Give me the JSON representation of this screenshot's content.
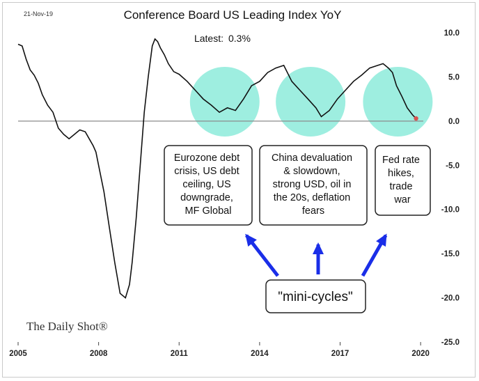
{
  "header": {
    "date": "21-Nov-19",
    "title": "Conference Board US Leading Index YoY",
    "latest_label": "Latest:",
    "latest_value": "0.3%"
  },
  "brand": "The Daily Shot®",
  "annotations": {
    "notes": [
      {
        "lines": [
          "Eurozone debt",
          "crisis, US debt",
          "ceiling, US",
          "downgrade,",
          "MF Global"
        ]
      },
      {
        "lines": [
          "China devaluation",
          "& slowdown,",
          "strong USD, oil in",
          "the 20s, deflation",
          "fears"
        ]
      },
      {
        "lines": [
          "Fed rate",
          "hikes,",
          "trade",
          "war"
        ]
      }
    ],
    "callout": "\"mini-cycles\""
  },
  "colors": {
    "line": "#111111",
    "highlight": "#7de8d6",
    "arrow": "#1a2ee8",
    "zero_line": "#8c8c8c",
    "latest_dot": "#d9534f"
  },
  "chart_data": {
    "type": "line",
    "title": "Conference Board US Leading Index YoY",
    "xlabel": "",
    "ylabel": "",
    "xlim": [
      2005.0,
      2020.1
    ],
    "ylim": [
      -25,
      10
    ],
    "x_ticks": [
      2005,
      2008,
      2011,
      2014,
      2017,
      2020
    ],
    "y_ticks": [
      10,
      5,
      0,
      -5,
      -10,
      -15,
      -20,
      -25
    ],
    "y_tick_labels": [
      "10.0",
      "5.0",
      "0.0",
      "-5.0",
      "-10.0",
      "-15.0",
      "-20.0",
      "-25.0"
    ],
    "grid": false,
    "reference_line": 0,
    "series": [
      {
        "name": "",
        "x": [
          2005.0,
          2005.15,
          2005.3,
          2005.45,
          2005.6,
          2005.75,
          2005.9,
          2006.1,
          2006.3,
          2006.5,
          2006.7,
          2006.9,
          2007.1,
          2007.3,
          2007.5,
          2007.65,
          2007.8,
          2007.9,
          2008.0,
          2008.2,
          2008.4,
          2008.6,
          2008.8,
          2009.0,
          2009.15,
          2009.25,
          2009.4,
          2009.55,
          2009.7,
          2009.85,
          2010.0,
          2010.1,
          2010.2,
          2010.3,
          2010.45,
          2010.6,
          2010.8,
          2011.0,
          2011.3,
          2011.6,
          2011.9,
          2012.2,
          2012.5,
          2012.8,
          2013.1,
          2013.4,
          2013.7,
          2014.0,
          2014.3,
          2014.6,
          2014.9,
          2015.2,
          2015.5,
          2015.8,
          2016.1,
          2016.3,
          2016.6,
          2016.9,
          2017.2,
          2017.5,
          2017.8,
          2018.1,
          2018.4,
          2018.6,
          2018.8,
          2018.95,
          2019.1,
          2019.3,
          2019.5,
          2019.7,
          2019.83
        ],
        "values": [
          8.7,
          8.5,
          7.0,
          5.8,
          5.2,
          4.3,
          3.0,
          1.8,
          1.0,
          -0.8,
          -1.5,
          -2.0,
          -1.5,
          -1.0,
          -1.2,
          -2.0,
          -2.8,
          -3.5,
          -5.0,
          -8.0,
          -12.0,
          -16.0,
          -19.5,
          -20.0,
          -18.5,
          -16.0,
          -11.0,
          -5.0,
          1.0,
          5.0,
          8.5,
          9.3,
          9.0,
          8.3,
          7.5,
          6.5,
          5.6,
          5.3,
          4.5,
          3.5,
          2.5,
          1.8,
          1.0,
          1.5,
          1.2,
          2.5,
          4.0,
          4.5,
          5.5,
          6.0,
          6.3,
          4.5,
          3.5,
          2.5,
          1.5,
          0.5,
          1.2,
          2.5,
          3.5,
          4.5,
          5.2,
          6.0,
          6.3,
          6.5,
          6.0,
          5.5,
          4.0,
          2.8,
          1.5,
          0.7,
          0.3
        ]
      }
    ],
    "highlights": [
      {
        "x_center": 2012.7,
        "y_center": 2.2
      },
      {
        "x_center": 2015.9,
        "y_center": 2.2
      },
      {
        "x_center": 2019.15,
        "y_center": 2.2
      }
    ],
    "latest_point": {
      "x": 2019.83,
      "y": 0.3
    }
  }
}
